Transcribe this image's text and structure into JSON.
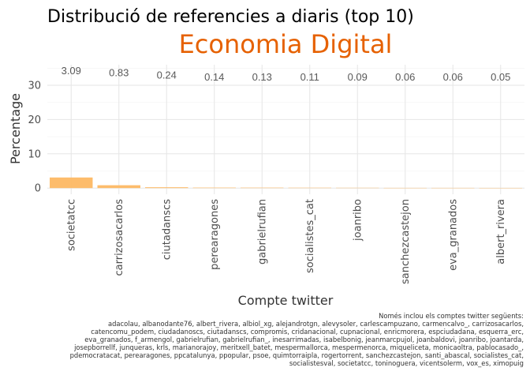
{
  "chart_data": {
    "type": "bar",
    "title": "Distribució de referencies a diaris (top 10)",
    "subtitle": "Economia Digital",
    "xlabel": "Compte twitter",
    "ylabel": "Percentage",
    "ylim": [
      -1.8,
      36
    ],
    "yticks": [
      0,
      10,
      20,
      30
    ],
    "grid": true,
    "legend": "none",
    "categories": [
      "societatcc",
      "carrizosacarlos",
      "ciutadanscs",
      "perearagones",
      "gabrielrufian",
      "socialistes_cat",
      "joanribo",
      "sanchezcastejon",
      "eva_granados",
      "albert_rivera"
    ],
    "values": [
      3.09,
      0.83,
      0.24,
      0.14,
      0.13,
      0.11,
      0.09,
      0.06,
      0.06,
      0.05
    ],
    "value_labels": [
      "3.09",
      "0.83",
      "0.24",
      "0.14",
      "0.13",
      "0.11",
      "0.09",
      "0.06",
      "0.06",
      "0.05"
    ],
    "bar_color": "#fdb863",
    "subtitle_color": "#e66101",
    "caption_lines": [
      "Només inclou els comptes twitter següents:",
      "adacolau, albanodante76, albert_rivera, albiol_xg, alejandrotgn, alevysoler, carlescampuzano, carmencalvo_, carrizosacarlos,",
      "catencomu_podem, ciudadanoscs, ciutadanscs, compromis, cridanacional, cupnacional, enricmorera, espciudadana, esquerra_erc,",
      "eva_granados, f_armengol, gabrielrufian, gabrielrufian_, inesarrimadas, isabelbonig, jeanmarcpujol, joanbaldovi, joanribo, joantarda,",
      "josepborrellf, junqueras, krls, marianorajoy, meritxell_batet, mespermallorca, mespermenorca, miqueliceta, monicaoltra, pablocasado_,",
      "pdemocratacat, perearagones, ppcatalunya, ppopular, psoe, quimtorraipla, rogertorrent, sanchezcastejon, santi_abascal, socialistes_cat,",
      "socialistesval, societatcc, toninoguera, vicentsolerm, vox_es, ximopuig"
    ]
  }
}
